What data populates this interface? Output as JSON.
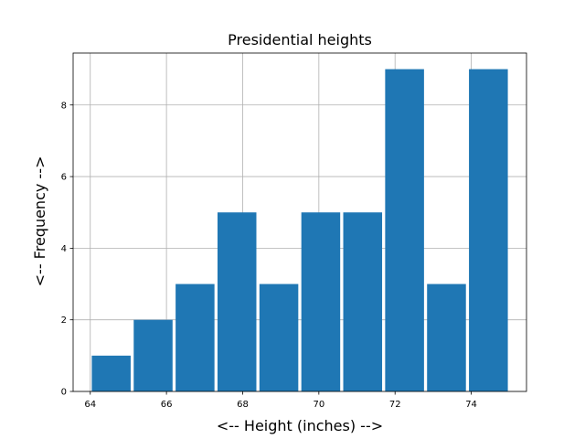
{
  "chart_data": {
    "type": "bar",
    "title": "Presidential heights",
    "xlabel": "<-- Height (inches) -->",
    "ylabel": "<-- Frequency -->",
    "xlim": [
      63.55,
      75.45
    ],
    "ylim": [
      0,
      9.45
    ],
    "grid": true,
    "x_ticks": [
      "64",
      "66",
      "68",
      "70",
      "72",
      "74"
    ],
    "y_ticks": [
      "0",
      "2",
      "4",
      "6",
      "8"
    ],
    "bins": [
      {
        "start": 64.0,
        "end": 65.1,
        "count": 1
      },
      {
        "start": 65.1,
        "end": 66.2,
        "count": 2
      },
      {
        "start": 66.2,
        "end": 67.3,
        "count": 3
      },
      {
        "start": 67.3,
        "end": 68.4,
        "count": 5
      },
      {
        "start": 68.4,
        "end": 69.5,
        "count": 3
      },
      {
        "start": 69.5,
        "end": 70.6,
        "count": 5
      },
      {
        "start": 70.6,
        "end": 71.7,
        "count": 5
      },
      {
        "start": 71.7,
        "end": 72.8,
        "count": 9
      },
      {
        "start": 72.8,
        "end": 73.9,
        "count": 3
      },
      {
        "start": 73.9,
        "end": 75.0,
        "count": 9
      }
    ],
    "bar_color": "#1f77b4",
    "grid_color": "#b0b0b0"
  }
}
